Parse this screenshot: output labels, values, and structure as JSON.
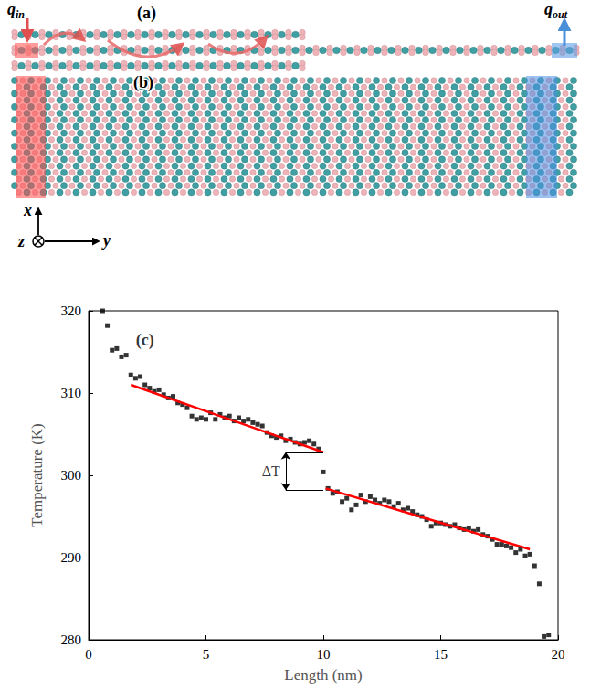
{
  "diagram": {
    "panel_a": {
      "label": "(a)",
      "q_in": {
        "base": "q",
        "sub": "in"
      },
      "q_out": {
        "base": "q",
        "sub": "out"
      }
    },
    "panel_b": {
      "label": "(b)"
    },
    "axes": {
      "x": "x",
      "y": "y",
      "z": "z"
    }
  },
  "chart_data": {
    "type": "scatter",
    "panel_label": {
      "text": "(c)",
      "x": 2.4,
      "y": 316.5
    },
    "x_label": "Length (nm)",
    "y_label": "Temperature (K)",
    "xlim": [
      0,
      20
    ],
    "xticks": [
      0,
      5,
      10,
      15,
      20
    ],
    "ylim": [
      280,
      320
    ],
    "yticks": [
      280,
      290,
      300,
      310,
      320
    ],
    "grid": false,
    "series": [
      {
        "type": "scatter",
        "marker": "square",
        "color": "#000000",
        "x": [
          0.6,
          0.8,
          1.0,
          1.2,
          1.4,
          1.6,
          1.8,
          2.0,
          2.2,
          2.4,
          2.6,
          2.8,
          3.0,
          3.2,
          3.4,
          3.6,
          3.8,
          4.0,
          4.2,
          4.4,
          4.6,
          4.8,
          5.0,
          5.2,
          5.4,
          5.6,
          5.8,
          6.0,
          6.2,
          6.4,
          6.6,
          6.8,
          7.0,
          7.2,
          7.4,
          7.6,
          7.8,
          8.0,
          8.2,
          8.4,
          8.6,
          8.8,
          9.0,
          9.2,
          9.4,
          9.6,
          9.8,
          10.0,
          10.2,
          10.4,
          10.6,
          10.8,
          11.0,
          11.2,
          11.4,
          11.6,
          11.8,
          12.0,
          12.2,
          12.4,
          12.6,
          12.8,
          13.0,
          13.2,
          13.4,
          13.6,
          13.8,
          14.0,
          14.2,
          14.4,
          14.6,
          14.8,
          15.0,
          15.2,
          15.4,
          15.6,
          15.8,
          16.0,
          16.2,
          16.4,
          16.6,
          16.8,
          17.0,
          17.2,
          17.4,
          17.6,
          17.8,
          18.0,
          18.2,
          18.4,
          18.6,
          18.8,
          19.0,
          19.2,
          19.4,
          19.6
        ],
        "values": [
          320.0,
          318.2,
          315.2,
          315.4,
          314.4,
          314.6,
          312.2,
          311.8,
          312.0,
          311.0,
          310.6,
          310.2,
          310.4,
          309.8,
          309.4,
          309.6,
          308.8,
          308.6,
          308.2,
          307.2,
          306.8,
          307.0,
          306.8,
          307.6,
          306.8,
          307.4,
          307.0,
          307.2,
          306.6,
          307.0,
          306.6,
          306.8,
          306.4,
          306.2,
          306.0,
          305.2,
          304.8,
          304.6,
          304.8,
          304.2,
          304.4,
          304.0,
          303.8,
          304.0,
          304.2,
          303.8,
          303.2,
          300.4,
          298.4,
          297.8,
          298.0,
          296.8,
          297.2,
          295.8,
          296.4,
          297.6,
          296.8,
          297.4,
          297.0,
          296.6,
          297.0,
          296.8,
          296.2,
          296.6,
          295.8,
          296.0,
          295.6,
          295.2,
          295.0,
          294.6,
          293.8,
          294.2,
          294.2,
          294.0,
          293.8,
          294.0,
          293.6,
          293.4,
          293.6,
          293.2,
          293.4,
          292.8,
          292.6,
          292.2,
          291.6,
          291.6,
          291.4,
          291.2,
          290.6,
          291.0,
          290.2,
          290.4,
          289.0,
          286.8,
          280.4,
          280.6
        ]
      },
      {
        "type": "line",
        "line_style": "solid",
        "color": "#ff0000",
        "x": [
          1.8,
          10.0
        ],
        "values": [
          311.0,
          302.8
        ]
      },
      {
        "type": "line",
        "line_style": "solid",
        "color": "#ff0000",
        "x": [
          10.1,
          18.8
        ],
        "values": [
          298.4,
          291.0
        ]
      }
    ],
    "annotations": [
      {
        "text": "ΔT",
        "x": 8.4,
        "x_end": 10.0,
        "y_top": 302.8,
        "y_bottom": 298.2
      }
    ]
  }
}
